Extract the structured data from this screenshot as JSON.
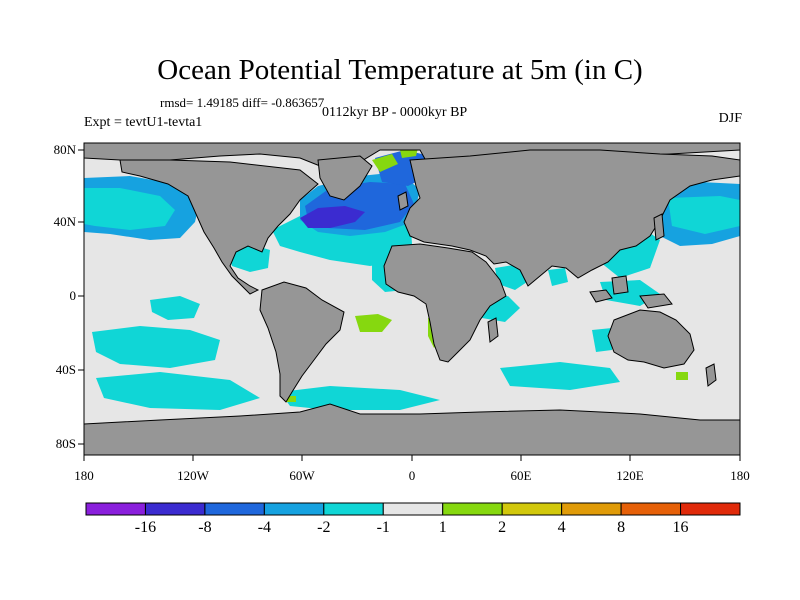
{
  "figure": {
    "title": "Ocean Potential Temperature at 5m (in C)",
    "stats": "rmsd= 1.49185 diff= -0.863657",
    "experiment": "Expt = tevtU1-tevta1",
    "period": "0112kyr BP - 0000kyr BP",
    "season": "DJF"
  },
  "axes": {
    "lat_labels": [
      "80N",
      "40N",
      "0",
      "40S",
      "80S"
    ],
    "lon_labels": [
      "180",
      "120W",
      "60W",
      "0",
      "60E",
      "120E",
      "180"
    ]
  },
  "colorbar": {
    "labels": [
      "-16",
      "-8",
      "-4",
      "-2",
      "-1",
      "1",
      "2",
      "4",
      "8",
      "16"
    ],
    "colors": [
      "#8a1fdc",
      "#3b2bd0",
      "#1f67dc",
      "#16a2e0",
      "#10d6d6",
      "#e6e6e6",
      "#86d80f",
      "#d2c80c",
      "#e09b08",
      "#e66008",
      "#e02a0a"
    ]
  },
  "palette": {
    "land": "#969696",
    "ocean_neutral": "#e6e6e6",
    "coast": "#000000"
  }
}
